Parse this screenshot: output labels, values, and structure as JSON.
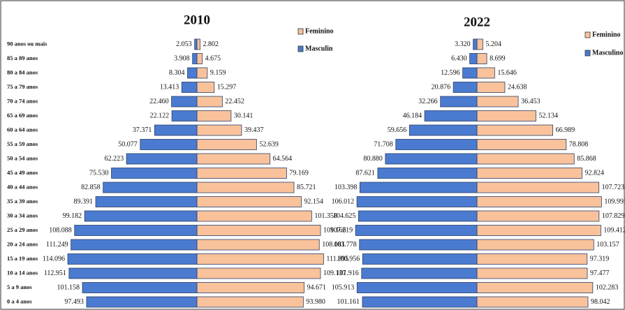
{
  "chart_data": [
    {
      "type": "pyramid",
      "title": "2010",
      "categories": [
        "90 anos ou mais",
        "85 a 89 anos",
        "80 a 84 anos",
        "75 a 79 anos",
        "70 a 74 anos",
        "65 a 69 anos",
        "60 a 64 anos",
        "55 a 59 anos",
        "50 a 54 anos",
        "45 a 49 anos",
        "40 a 44 anos",
        "35 a 39 anos",
        "30 a 34 anos",
        "25 a 29 anos",
        "20 a 24 anos",
        "15 a 19 anos",
        "10 a 14 anos",
        "5 a 9 anos",
        "0 a 4 anos"
      ],
      "series": [
        {
          "name": "Feminino",
          "color": "#f9c29b",
          "values": [
            2802,
            4675,
            9159,
            15297,
            22452,
            30141,
            39437,
            52639,
            64564,
            79169,
            85721,
            92154,
            101358,
            109166,
            108081,
            111895,
            109137,
            94671,
            93980
          ],
          "value_labels": [
            "2.802",
            "4.675",
            "9.159",
            "15.297",
            "22.452",
            "30.141",
            "39.437",
            "52.639",
            "64.564",
            "79.169",
            "85.721",
            "92.154",
            "101.358",
            "109.166",
            "108.081",
            "111.895",
            "109.137",
            "94.671",
            "93.980"
          ]
        },
        {
          "name": "Masculin",
          "color": "#4a7bd0",
          "values": [
            2053,
            3908,
            8304,
            13413,
            22460,
            22122,
            37371,
            50077,
            62223,
            75530,
            82858,
            89391,
            99182,
            108088,
            111249,
            114096,
            112951,
            101158,
            97493
          ],
          "value_labels": [
            "2.053",
            "3.908",
            "8.304",
            "13.413",
            "22.460",
            "22.122",
            "37.371",
            "50.077",
            "62.223",
            "75.530",
            "82.858",
            "89.391",
            "99.182",
            "108.088",
            "111.249",
            "114.096",
            "112.951",
            "101.158",
            "97.493"
          ]
        }
      ]
    },
    {
      "type": "pyramid",
      "title": "2022",
      "series": [
        {
          "name": "Feminino",
          "color": "#f9c29b",
          "values": [
            5204,
            8699,
            15646,
            24638,
            36453,
            52134,
            66989,
            78808,
            85868,
            92824,
            107723,
            109993,
            107829,
            109412,
            103157,
            97319,
            97477,
            102283,
            98042
          ],
          "value_labels": [
            "5.204",
            "8.699",
            "15.646",
            "24.638",
            "36.453",
            "52.134",
            "66.989",
            "78.808",
            "85.868",
            "92.824",
            "107.723",
            "109.993",
            "107.829",
            "109.412",
            "103.157",
            "97.319",
            "97.477",
            "102.283",
            "98.042"
          ]
        },
        {
          "name": "Masculino",
          "color": "#4a7bd0",
          "values": [
            3320,
            6430,
            12596,
            20876,
            32266,
            46184,
            59656,
            71708,
            80880,
            87621,
            103398,
            106012,
            104625,
            107219,
            103778,
            100956,
            101916,
            105913,
            101161
          ],
          "value_labels": [
            "3.320",
            "6.430",
            "12.596",
            "20.876",
            "32.266",
            "46.184",
            "59.656",
            "71.708",
            "80.880",
            "87.621",
            "103.398",
            "106.012",
            "104.625",
            "107.219",
            "103.778",
            "100.956",
            "101.916",
            "105.913",
            "101.161"
          ]
        }
      ]
    }
  ]
}
